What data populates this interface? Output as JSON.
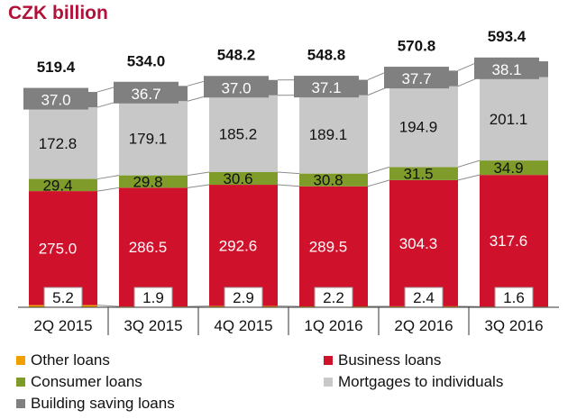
{
  "colors": {
    "title": "#b0123a",
    "business": "#d0112b",
    "consumer": "#7f9c2b",
    "mortgage": "#c8c8c8",
    "building": "#808080",
    "other": "#f0a100",
    "connector": "#8c8c8c",
    "axis": "#333333"
  },
  "chart_data": {
    "type": "bar",
    "stacked": true,
    "title": "CZK billion",
    "categories": [
      "2Q 2015",
      "3Q 2015",
      "4Q 2015",
      "1Q 2016",
      "2Q 2016",
      "3Q 2016"
    ],
    "totals": [
      519.4,
      534.0,
      548.2,
      548.8,
      570.8,
      593.4
    ],
    "total_labels": [
      "519.4",
      "534.0",
      "548.2",
      "548.8",
      "570.8",
      "593.4"
    ],
    "series": [
      {
        "name": "Other loans",
        "color": "#f0a100",
        "values": [
          5.2,
          1.9,
          2.9,
          2.2,
          2.4,
          1.6
        ],
        "labels": [
          "5.2",
          "1.9",
          "2.9",
          "2.2",
          "2.4",
          "1.6"
        ]
      },
      {
        "name": "Business loans",
        "color": "#d0112b",
        "values": [
          275.0,
          286.5,
          292.6,
          289.5,
          304.3,
          317.6
        ],
        "labels": [
          "275.0",
          "286.5",
          "292.6",
          "289.5",
          "304.3",
          "317.6"
        ]
      },
      {
        "name": "Consumer loans",
        "color": "#7f9c2b",
        "values": [
          29.4,
          29.8,
          30.6,
          30.8,
          31.5,
          34.9
        ],
        "labels": [
          "29.4",
          "29.8",
          "30.6",
          "30.8",
          "31.5",
          "34.9"
        ]
      },
      {
        "name": "Mortgages to individuals",
        "color": "#c8c8c8",
        "values": [
          172.8,
          179.1,
          185.2,
          189.1,
          194.9,
          201.1
        ],
        "labels": [
          "172.8",
          "179.1",
          "185.2",
          "189.1",
          "194.9",
          "201.1"
        ]
      },
      {
        "name": "Building saving loans",
        "color": "#808080",
        "values": [
          37.0,
          36.7,
          37.0,
          37.1,
          37.7,
          38.1
        ],
        "labels": [
          "37.0",
          "36.7",
          "37.0",
          "37.1",
          "37.7",
          "38.1"
        ]
      }
    ],
    "legend_placement": "bottom",
    "grid": false
  }
}
